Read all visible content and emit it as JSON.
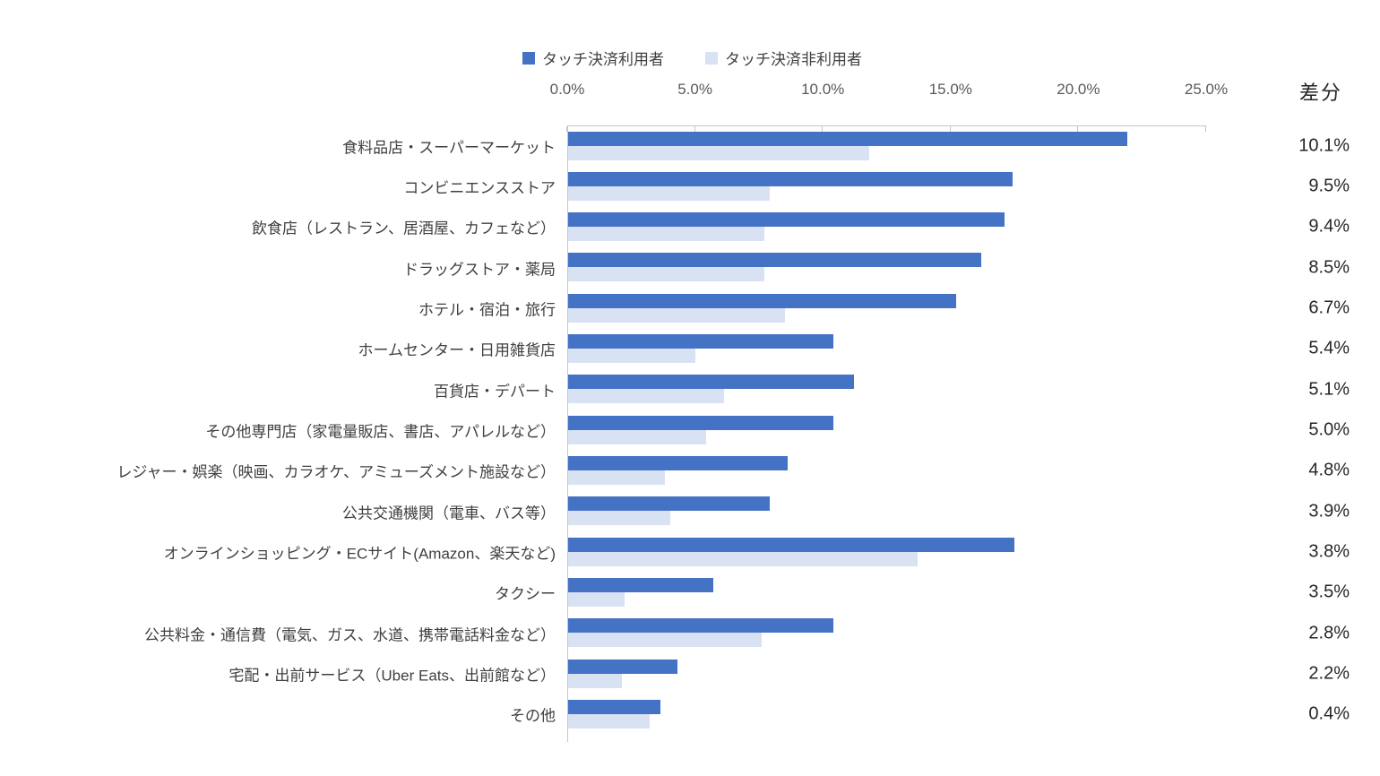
{
  "chart_data": {
    "type": "bar",
    "orientation": "horizontal",
    "title": "",
    "legend_position": "top",
    "grid": false,
    "xlim": [
      0,
      25
    ],
    "x_ticks": [
      0,
      5,
      10,
      15,
      20,
      25
    ],
    "x_tick_labels": [
      "0.0%",
      "5.0%",
      "10.0%",
      "15.0%",
      "20.0%",
      "25.0%"
    ],
    "diff_column_header": "差分",
    "categories": [
      "食料品店・スーパーマーケット",
      "コンビニエンスストア",
      "飲食店（レストラン、居酒屋、カフェなど）",
      "ドラッグストア・薬局",
      "ホテル・宿泊・旅行",
      "ホームセンター・日用雑貨店",
      "百貨店・デパート",
      "その他専門店（家電量販店、書店、アパレルなど）",
      "レジャー・娯楽（映画、カラオケ、アミューズメント施設など）",
      "公共交通機関（電車、バス等）",
      "オンラインショッピング・ECサイト(Amazon、楽天など)",
      "タクシー",
      "公共料金・通信費（電気、ガス、水道、携帯電話料金など）",
      "宅配・出前サービス（Uber Eats、出前館など）",
      "その他"
    ],
    "series": [
      {
        "name": "タッチ決済利用者",
        "color": "#4472C4",
        "values": [
          21.9,
          17.4,
          17.1,
          16.2,
          15.2,
          10.4,
          11.2,
          10.4,
          8.6,
          7.9,
          17.5,
          5.7,
          10.4,
          4.3,
          3.6
        ]
      },
      {
        "name": "タッチ決済非利用者",
        "color": "#D9E2F3",
        "values": [
          11.8,
          7.9,
          7.7,
          7.7,
          8.5,
          5.0,
          6.1,
          5.4,
          3.8,
          4.0,
          13.7,
          2.2,
          7.6,
          2.1,
          3.2
        ]
      }
    ],
    "diffs": [
      "10.1%",
      "9.5%",
      "9.4%",
      "8.5%",
      "6.7%",
      "5.4%",
      "5.1%",
      "5.0%",
      "4.8%",
      "3.9%",
      "3.8%",
      "3.5%",
      "2.8%",
      "2.2%",
      "0.4%"
    ]
  },
  "colors": {
    "series1": "#4472C4",
    "series2": "#D9E2F3",
    "axis_line": "#C6C6C6",
    "axis_label_text": "#595959",
    "category_label_text": "#404040",
    "diff_text": "#262626",
    "background": "#FFFFFF"
  }
}
